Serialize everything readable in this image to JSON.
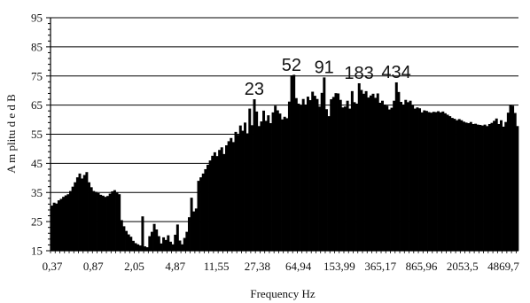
{
  "chart_data": {
    "type": "bar",
    "ylabel": "A m plitu d e d B",
    "xlabel": "Frequency  Hz",
    "ylim": [
      15,
      95
    ],
    "y_ticks": [
      "95",
      "85",
      "75",
      "65",
      "55",
      "45",
      "35",
      "25",
      "15"
    ],
    "x_ticks": [
      "0,37",
      "0,87",
      "2,05",
      "4,87",
      "11,55",
      "27,38",
      "64,94",
      "153,99",
      "365,17",
      "865,96",
      "2053,5",
      "4869,7"
    ],
    "grid": true,
    "legend": "none",
    "bar_color": "#000000",
    "annotations": [
      {
        "text": "23",
        "bin": 87
      },
      {
        "text": "52",
        "bin": 103
      },
      {
        "text": "91",
        "bin": 117
      },
      {
        "text": "183",
        "bin": 132
      },
      {
        "text": "434",
        "bin": 148
      }
    ],
    "values": [
      30.5,
      31.5,
      31.2,
      32.3,
      32.8,
      33.5,
      34.0,
      34.4,
      35.5,
      37.0,
      38.5,
      40.2,
      41.5,
      39.8,
      41.0,
      42.0,
      38.5,
      36.8,
      35.5,
      35.2,
      34.8,
      34.2,
      33.9,
      33.5,
      33.8,
      34.6,
      35.4,
      35.8,
      35.1,
      34.4,
      25.5,
      23.4,
      21.8,
      20.6,
      19.8,
      18.4,
      17.6,
      17.2,
      16.8,
      26.8,
      16.5,
      16.2,
      20.0,
      21.5,
      24.2,
      22.3,
      20.0,
      17.5,
      19.6,
      18.7,
      20.3,
      18.1,
      17.2,
      20.5,
      24.0,
      18.5,
      17.2,
      19.4,
      21.5,
      26.5,
      33.2,
      28.5,
      29.5,
      39.0,
      40.2,
      41.5,
      43.0,
      44.5,
      46.0,
      47.6,
      48.8,
      47.5,
      49.6,
      50.5,
      48.2,
      51.2,
      52.6,
      53.7,
      52.3,
      55.8,
      54.8,
      58.0,
      56.2,
      59.0,
      55.3,
      63.8,
      58.1,
      67.0,
      62.8,
      57.8,
      59.4,
      63.1,
      59.6,
      61.5,
      58.8,
      62.5,
      64.8,
      63.2,
      62.1,
      60.1,
      61.0,
      60.5,
      66.2,
      75.2,
      75.4,
      67.4,
      65.5,
      64.9,
      67.1,
      65.2,
      67.9,
      66.7,
      69.6,
      68.2,
      67.1,
      64.5,
      69.2,
      74.5,
      63.6,
      61.2,
      67.0,
      67.8,
      69.1,
      69.0,
      66.8,
      64.2,
      64.5,
      66.5,
      63.8,
      69.8,
      66.0,
      65.5,
      72.5,
      70.2,
      68.9,
      69.8,
      67.6,
      68.3,
      68.9,
      67.5,
      69.0,
      65.8,
      66.5,
      65.2,
      64.8,
      63.5,
      64.1,
      66.5,
      72.8,
      69.5,
      66.1,
      65.2,
      66.8,
      66.0,
      66.5,
      65.0,
      63.8,
      64.2,
      63.9,
      62.5,
      63.2,
      63.0,
      62.6,
      62.4,
      62.7,
      62.6,
      62.9,
      62.5,
      62.8,
      62.2,
      61.7,
      61.2,
      60.6,
      60.3,
      59.8,
      60.2,
      59.8,
      59.3,
      59.0,
      58.8,
      59.2,
      58.5,
      58.6,
      58.3,
      58.2,
      58.0,
      58.3,
      57.8,
      58.5,
      58.9,
      59.6,
      60.4,
      58.5,
      59.8,
      57.6,
      59.2,
      62.4,
      65.1,
      64.8,
      62.3,
      57.8
    ]
  }
}
